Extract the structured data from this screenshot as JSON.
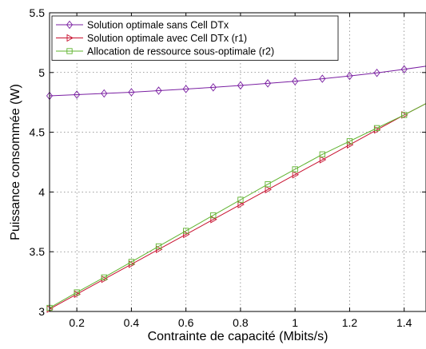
{
  "chart_data": {
    "type": "line",
    "xlabel": "Contrainte de capacité (Mbits/s)",
    "ylabel": "Puissance consommée (W)",
    "xlim": [
      0.1,
      1.48
    ],
    "ylim": [
      3,
      5.5
    ],
    "xticks": [
      0.2,
      0.4,
      0.6,
      0.8,
      1,
      1.2,
      1.4
    ],
    "xtick_labels": [
      "0.2",
      "0.4",
      "0.6",
      "0.8",
      "1",
      "1.2",
      "1.4"
    ],
    "yticks": [
      3,
      3.5,
      4,
      4.5,
      5,
      5.5
    ],
    "ytick_labels": [
      "3",
      "3.5",
      "4",
      "4.5",
      "5",
      "5.5"
    ],
    "grid": true,
    "legend_position": "top-left",
    "x": [
      0.1,
      0.2,
      0.3,
      0.4,
      0.5,
      0.6,
      0.7,
      0.8,
      0.9,
      1.0,
      1.1,
      1.2,
      1.3,
      1.4,
      1.48
    ],
    "series": [
      {
        "name": "Solution optimale sans Cell DTx",
        "color": "#7a1fa2",
        "marker": "diamond",
        "values": [
          4.805,
          4.815,
          4.825,
          4.835,
          4.848,
          4.862,
          4.876,
          4.892,
          4.909,
          4.927,
          4.948,
          4.971,
          4.997,
          5.027,
          5.053
        ]
      },
      {
        "name": "Solution optimale avec Cell DTx (r1)",
        "color": "#c8102e",
        "marker": "triangle-right",
        "values": [
          3.02,
          3.145,
          3.27,
          3.395,
          3.52,
          3.645,
          3.77,
          3.895,
          4.02,
          4.145,
          4.27,
          4.395,
          4.52,
          4.645,
          4.74
        ]
      },
      {
        "name": "Allocation de ressource sous-optimale (r2)",
        "color": "#5fb32e",
        "marker": "square",
        "values": [
          3.03,
          3.16,
          3.285,
          3.415,
          3.545,
          3.675,
          3.805,
          3.935,
          4.065,
          4.19,
          4.315,
          4.425,
          4.535,
          4.645,
          4.74
        ]
      }
    ]
  }
}
